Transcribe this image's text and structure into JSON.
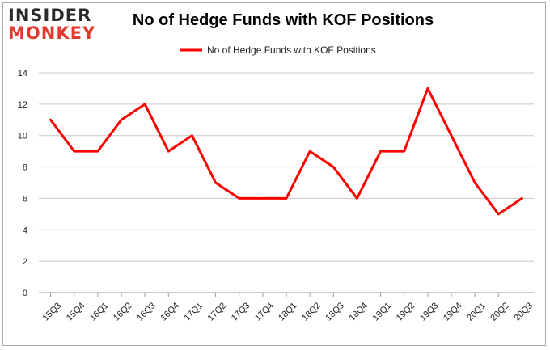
{
  "logo": {
    "line1": "INSIDER",
    "line2": "MONKEY"
  },
  "chart_data": {
    "type": "line",
    "title": "No of Hedge Funds with KOF Positions",
    "xlabel": "",
    "ylabel": "",
    "categories": [
      "15Q3",
      "15Q4",
      "16Q1",
      "16Q2",
      "16Q3",
      "16Q4",
      "17Q1",
      "17Q2",
      "17Q3",
      "17Q4",
      "18Q1",
      "18Q2",
      "18Q3",
      "18Q4",
      "19Q1",
      "19Q2",
      "19Q3",
      "19Q4",
      "20Q1",
      "20Q2",
      "20Q3"
    ],
    "series": [
      {
        "name": "No of Hedge Funds with KOF Positions",
        "values": [
          11,
          9,
          9,
          11,
          12,
          9,
          10,
          7,
          6,
          6,
          6,
          9,
          8,
          6,
          9,
          9,
          13,
          10,
          7,
          5,
          6
        ]
      }
    ],
    "ylim": [
      0,
      14
    ],
    "yticks": [
      0,
      2,
      4,
      6,
      8,
      10,
      12,
      14
    ],
    "grid": true,
    "legend": "top-center",
    "color": "#ff0000"
  }
}
